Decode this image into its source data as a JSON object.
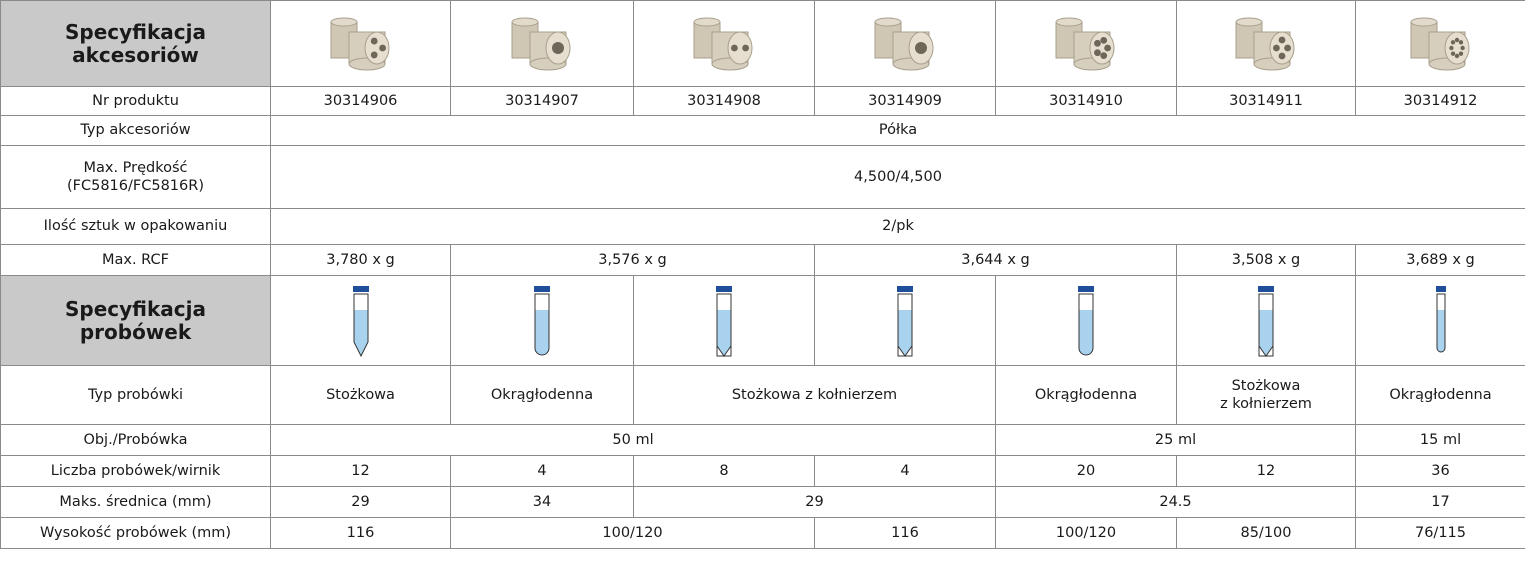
{
  "accessories": {
    "title": "Specyfikacja\nakcesoriów",
    "rows": [
      [
        "Nr produktu",
        "30314906",
        "30314907",
        "30314908",
        "30314909",
        "30314910",
        "30314911",
        "30314912"
      ],
      [
        "Typ akcesoriów",
        "Półka"
      ],
      [
        "Max. Prędkość\n(FC5816/FC5816R)",
        "4,500/4,500"
      ],
      [
        "Ilość sztuk w opakowaniu",
        "2/pk"
      ],
      [
        "Max. RCF",
        "3,780 x g",
        "3,576 x g",
        "3,644 x g",
        "3,508 x g",
        "3,689 x g"
      ]
    ]
  },
  "tubes": {
    "title": "Specyfikacja\nprobówek",
    "rows": [
      [
        "Typ probówki",
        "Stożkowa",
        "Okrągłodenna",
        "Stożkowa z kołnierzem",
        "Okrągłodenna",
        "Stożkowa\nz kołnierzem",
        "Okrągłodenna"
      ],
      [
        "Obj./Probówka",
        "50 ml",
        "25 ml",
        "15 ml"
      ],
      [
        "Liczba probówek/wirnik",
        "12",
        "4",
        "8",
        "4",
        "20",
        "12",
        "36"
      ],
      [
        "Maks. średnica (mm)",
        "29",
        "34",
        "29",
        "24.5",
        "17"
      ],
      [
        "Wysokość probówek (mm)",
        "116",
        "100/120",
        "116",
        "100/120",
        "85/100",
        "76/115"
      ]
    ]
  }
}
